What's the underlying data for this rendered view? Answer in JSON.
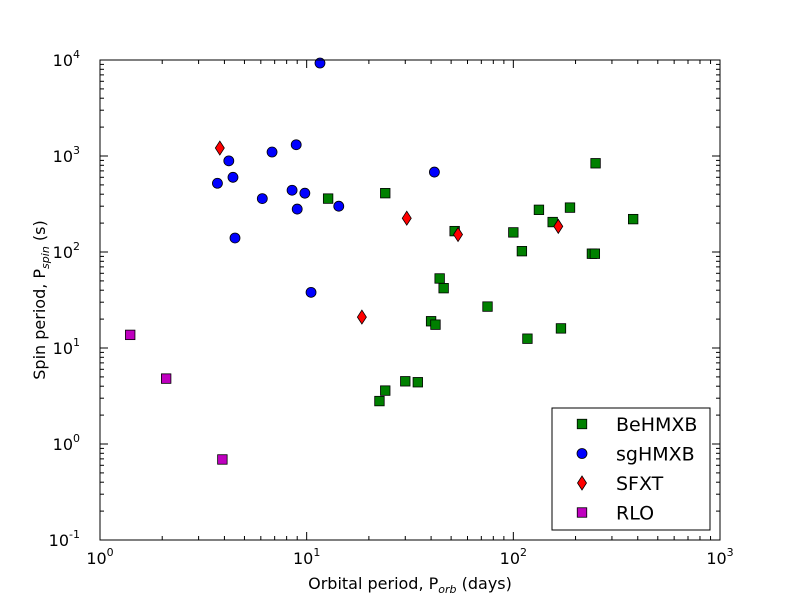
{
  "chart_data": {
    "type": "scatter",
    "xscale": "log",
    "yscale": "log",
    "xlim": [
      1,
      1000
    ],
    "ylim": [
      0.1,
      10000
    ],
    "xticks": [
      {
        "value": 1,
        "base": "10",
        "exp": "0"
      },
      {
        "value": 10,
        "base": "10",
        "exp": "1"
      },
      {
        "value": 100,
        "base": "10",
        "exp": "2"
      },
      {
        "value": 1000,
        "base": "10",
        "exp": "3"
      }
    ],
    "yticks": [
      {
        "value": 0.1,
        "base": "10",
        "exp": "-1"
      },
      {
        "value": 1,
        "base": "10",
        "exp": "0"
      },
      {
        "value": 10,
        "base": "10",
        "exp": "1"
      },
      {
        "value": 100,
        "base": "10",
        "exp": "2"
      },
      {
        "value": 1000,
        "base": "10",
        "exp": "3"
      },
      {
        "value": 10000,
        "base": "10",
        "exp": "4"
      }
    ],
    "xlabel": {
      "main": "Orbital period, P",
      "sub": "orb",
      "suffix": " (days)"
    },
    "ylabel": {
      "main": "Spin period, P",
      "sub": "spin",
      "suffix": " (s)"
    },
    "grid": false,
    "legend": "lower-right",
    "series": [
      {
        "name": "BeHMXB",
        "marker": "square",
        "color": "#008000",
        "points": [
          [
            12.7,
            360
          ],
          [
            24.0,
            410
          ],
          [
            22.5,
            2.8
          ],
          [
            24.0,
            3.6
          ],
          [
            30.0,
            4.5
          ],
          [
            34.5,
            4.4
          ],
          [
            40.0,
            19.0
          ],
          [
            42.0,
            17.5
          ],
          [
            44.0,
            53
          ],
          [
            46.0,
            42
          ],
          [
            52.0,
            165
          ],
          [
            75.0,
            27
          ],
          [
            100.0,
            160
          ],
          [
            110.0,
            102
          ],
          [
            117.0,
            12.5
          ],
          [
            133.0,
            275
          ],
          [
            155.0,
            205
          ],
          [
            170.0,
            16
          ],
          [
            188.0,
            290
          ],
          [
            240.0,
            96
          ],
          [
            248.0,
            96
          ],
          [
            250.0,
            840
          ],
          [
            380.0,
            220
          ]
        ]
      },
      {
        "name": "sgHMXB",
        "marker": "circle",
        "color": "#0000ff",
        "points": [
          [
            3.7,
            520
          ],
          [
            4.2,
            890
          ],
          [
            4.4,
            600
          ],
          [
            4.5,
            140
          ],
          [
            6.1,
            360
          ],
          [
            6.8,
            1100
          ],
          [
            8.5,
            440
          ],
          [
            8.9,
            1310
          ],
          [
            9.0,
            280
          ],
          [
            9.8,
            410
          ],
          [
            10.5,
            38
          ],
          [
            11.6,
            9300
          ],
          [
            14.3,
            300
          ],
          [
            41.5,
            680
          ]
        ]
      },
      {
        "name": "SFXT",
        "marker": "diamond",
        "color": "#ff0000",
        "points": [
          [
            3.8,
            1210
          ],
          [
            18.5,
            21
          ],
          [
            30.5,
            225
          ],
          [
            54.0,
            152
          ],
          [
            165.0,
            185
          ]
        ]
      },
      {
        "name": "RLO",
        "marker": "square",
        "color": "#bf00bf",
        "points": [
          [
            1.4,
            13.7
          ],
          [
            2.09,
            4.8
          ],
          [
            3.91,
            0.69
          ]
        ]
      }
    ]
  }
}
